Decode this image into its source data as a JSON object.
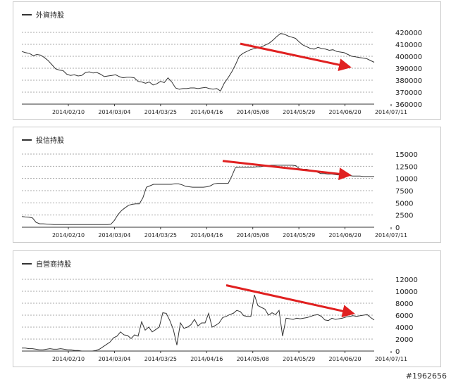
{
  "chart_data": [
    {
      "type": "line",
      "legend": "外資持股",
      "x_ticks": [
        "2014/02/10",
        "2014/03/04",
        "2014/03/25",
        "2014/04/16",
        "2014/05/08",
        "2014/05/29",
        "2014/06/20",
        "2014/07/11"
      ],
      "y_ticks": [
        "420000",
        "410000",
        "400000",
        "390000",
        "380000",
        "370000",
        "360000"
      ],
      "ylim": [
        360000,
        420000
      ],
      "grid": true,
      "series": [
        {
          "name": "外資持股",
          "values": [
            404000,
            403000,
            402500,
            400500,
            401500,
            401000,
            399000,
            396500,
            393000,
            389500,
            388500,
            388000,
            385000,
            384000,
            384500,
            383500,
            384000,
            386500,
            387000,
            386000,
            386500,
            385000,
            383000,
            383500,
            384000,
            384500,
            383000,
            382000,
            382500,
            382500,
            382000,
            379000,
            378500,
            377500,
            378500,
            376000,
            377000,
            379000,
            378000,
            382000,
            378500,
            373500,
            372500,
            373000,
            373000,
            373500,
            373500,
            373000,
            373500,
            374000,
            373000,
            372500,
            373000,
            371000,
            377500,
            382000,
            387000,
            393000,
            400000,
            402500,
            404000,
            405500,
            406500,
            407000,
            408000,
            409500,
            411000,
            413500,
            416500,
            419000,
            418500,
            417000,
            416000,
            415000,
            412000,
            409500,
            408000,
            406500,
            406000,
            407500,
            406500,
            406000,
            405000,
            405500,
            404000,
            403500,
            403000,
            401500,
            400000,
            399500,
            399000,
            398500,
            398000,
            396500,
            395000
          ]
        }
      ],
      "annotations": [
        {
          "type": "arrow",
          "color": "#e02020",
          "from": [
            62,
            410500
          ],
          "to": [
            93,
            391000
          ]
        }
      ]
    },
    {
      "type": "line",
      "legend": "投信持股",
      "x_ticks": [
        "2014/02/10",
        "2014/03/04",
        "2014/03/25",
        "2014/04/16",
        "2014/05/08",
        "2014/05/29",
        "2014/06/20",
        "2014/07/11"
      ],
      "y_ticks": [
        "15000",
        "12500",
        "10000",
        "7500",
        "5000",
        "2500",
        "0"
      ],
      "ylim": [
        0,
        15000
      ],
      "grid": true,
      "series": [
        {
          "name": "投信持股",
          "values": [
            2200,
            2100,
            2050,
            1900,
            1000,
            700,
            700,
            650,
            600,
            550,
            550,
            550,
            550,
            550,
            550,
            550,
            550,
            550,
            550,
            550,
            550,
            550,
            550,
            550,
            550,
            600,
            1400,
            2600,
            3400,
            4000,
            4500,
            4700,
            4800,
            4800,
            6000,
            8200,
            8500,
            8800,
            8800,
            8800,
            8800,
            8800,
            8800,
            8900,
            8900,
            8700,
            8400,
            8300,
            8200,
            8200,
            8200,
            8200,
            8300,
            8500,
            8900,
            9000,
            9000,
            9000,
            9000,
            10500,
            12200,
            12300,
            12300,
            12300,
            12300,
            12300,
            12400,
            12400,
            12500,
            12600,
            12700,
            12700,
            12700,
            12700,
            12700,
            12700,
            12700,
            12600,
            12000,
            11900,
            11900,
            11700,
            11600,
            11300,
            11000,
            11000,
            10900,
            10900,
            10800,
            10700,
            10700,
            10600,
            10600,
            10500,
            10500,
            10500,
            10400,
            10400,
            10400,
            10400
          ]
        }
      ],
      "annotations": [
        {
          "type": "arrow",
          "color": "#e02020",
          "from": [
            57,
            13600
          ],
          "to": [
            93,
            10700
          ]
        }
      ]
    },
    {
      "type": "line",
      "legend": "自營商持股",
      "x_ticks": [
        "2014/02/10",
        "2014/03/04",
        "2014/03/25",
        "2014/04/16",
        "2014/05/08",
        "2014/05/29",
        "2014/06/20",
        "2014/07/11"
      ],
      "y_ticks": [
        "12000",
        "10000",
        "8000",
        "6000",
        "4000",
        "2000",
        "0"
      ],
      "ylim": [
        0,
        12000
      ],
      "grid": true,
      "series": [
        {
          "name": "自營商持股",
          "values": [
            500,
            500,
            400,
            400,
            300,
            200,
            200,
            300,
            400,
            300,
            300,
            400,
            300,
            200,
            200,
            100,
            100,
            0,
            0,
            0,
            0,
            100,
            300,
            700,
            1100,
            1500,
            2200,
            2500,
            3200,
            2700,
            2600,
            2100,
            2700,
            2500,
            4900,
            3500,
            4000,
            3200,
            3600,
            4000,
            6400,
            6300,
            5100,
            3600,
            1000,
            4700,
            3800,
            4000,
            4400,
            5300,
            4200,
            4700,
            4700,
            6300,
            4000,
            4300,
            4700,
            5600,
            5800,
            6100,
            6300,
            6800,
            6600,
            5900,
            5800,
            5800,
            9400,
            7600,
            7300,
            7000,
            6000,
            6400,
            6100,
            6800,
            2500,
            5500,
            5400,
            5300,
            5500,
            5400,
            5500,
            5600,
            5800,
            6000,
            6100,
            5800,
            5200,
            5100,
            5500,
            5300,
            5400,
            5500,
            5700,
            5800,
            5900,
            5800,
            5900,
            6000,
            6100,
            5600,
            5200
          ]
        }
      ],
      "annotations": [
        {
          "type": "arrow",
          "color": "#e02020",
          "from": [
            58,
            11000
          ],
          "to": [
            94,
            6300
          ]
        }
      ]
    }
  ],
  "watermark": "#1962656",
  "colors": {
    "line": "#333333",
    "arrow": "#e02020",
    "grid": "#aaaaaa",
    "border": "#c9c9c9"
  }
}
